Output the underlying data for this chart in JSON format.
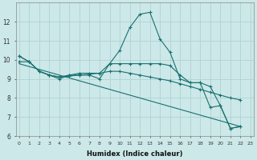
{
  "xlabel": "Humidex (Indice chaleur)",
  "x_ticks": [
    0,
    1,
    2,
    3,
    4,
    5,
    6,
    7,
    8,
    9,
    10,
    11,
    12,
    13,
    14,
    15,
    16,
    17,
    18,
    19,
    20,
    21,
    22,
    23
  ],
  "ylim": [
    6,
    13
  ],
  "y_ticks": [
    6,
    7,
    8,
    9,
    10,
    11,
    12
  ],
  "bg_color": "#cce8e8",
  "line_color": "#1a7070",
  "grid_color": "#aacfcf",
  "line1_x": [
    0,
    1,
    2,
    3,
    4,
    5,
    6,
    7,
    8,
    9,
    10,
    11,
    12,
    13,
    14,
    15,
    16,
    17,
    18,
    19,
    20,
    21,
    22
  ],
  "line1_y": [
    10.2,
    9.9,
    9.4,
    9.2,
    9.0,
    9.2,
    9.2,
    9.2,
    9.0,
    9.8,
    10.5,
    11.7,
    12.4,
    12.5,
    11.1,
    10.4,
    9.0,
    8.8,
    8.8,
    7.5,
    7.6,
    6.4,
    6.5
  ],
  "line2_x": [
    0,
    1,
    2,
    3,
    4,
    5,
    6,
    7,
    8,
    9,
    10,
    11,
    12,
    13,
    14,
    15,
    16,
    17,
    18,
    19,
    20,
    21,
    22
  ],
  "line2_y": [
    9.9,
    9.9,
    9.4,
    9.2,
    9.1,
    9.2,
    9.3,
    9.3,
    9.3,
    9.8,
    9.8,
    9.8,
    9.8,
    9.8,
    9.8,
    9.7,
    9.2,
    8.8,
    8.8,
    8.6,
    7.6,
    6.4,
    6.5
  ],
  "line3_x": [
    0,
    1,
    2,
    3,
    4,
    5,
    6,
    7,
    8,
    9,
    10,
    11,
    12,
    13,
    14,
    15,
    16,
    17,
    18,
    19,
    20,
    21,
    22
  ],
  "line3_y": [
    10.2,
    9.9,
    9.4,
    9.2,
    9.1,
    9.15,
    9.2,
    9.25,
    9.3,
    9.4,
    9.4,
    9.3,
    9.2,
    9.1,
    9.0,
    8.9,
    8.75,
    8.6,
    8.45,
    8.3,
    8.15,
    8.0,
    7.9
  ],
  "line4_x": [
    0,
    22
  ],
  "line4_y": [
    9.8,
    6.5
  ]
}
